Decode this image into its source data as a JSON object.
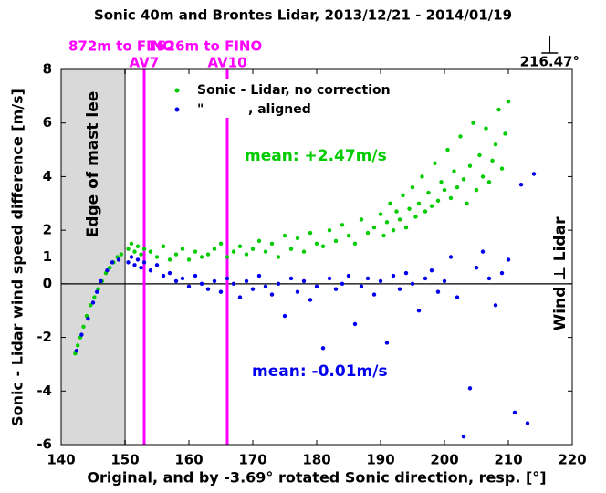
{
  "chart_data": {
    "type": "scatter",
    "title": "Sonic 40m and Brontes Lidar, 2013/12/21 - 2014/01/19",
    "xlabel": "Original, and by -3.69° rotated Sonic direction, resp. [°]",
    "ylabel": "Sonic - Lidar wind speed difference [m/s]",
    "xlim": [
      140,
      220
    ],
    "ylim": [
      -6,
      8
    ],
    "xticks": [
      140,
      150,
      160,
      170,
      180,
      190,
      200,
      210,
      220
    ],
    "yticks": [
      -6,
      -4,
      -2,
      0,
      1,
      2,
      4,
      6,
      8
    ],
    "hline": 0,
    "shaded_span": {
      "x": [
        140,
        150
      ],
      "label": "Edge of mast lee"
    },
    "vlines": [
      {
        "x": 153,
        "color": "#ff00ff",
        "labels": [
          "872m to FINO",
          "AV7"
        ]
      },
      {
        "x": 166,
        "color": "#ff00ff",
        "labels": [
          "1626m to FINO",
          "AV10"
        ]
      }
    ],
    "direction_marker": {
      "value": 216.47,
      "label": "216.47°"
    },
    "side_label": "Wind ⊥ Lidar",
    "annotations": [
      "mean: +2.47m/s",
      "mean: -0.01m/s"
    ],
    "series": [
      {
        "name": "Sonic - Lidar, no correction",
        "color": "#00cc00",
        "x": [
          142.2,
          142.6,
          143,
          143.5,
          144,
          144.6,
          145.2,
          145.8,
          146.4,
          147,
          147.6,
          148.2,
          148.8,
          149.4,
          150.5,
          151,
          151.5,
          152,
          152.5,
          153,
          154,
          155,
          156,
          157,
          158,
          159,
          160,
          161,
          162,
          163,
          164,
          165,
          166,
          167,
          168,
          169,
          170,
          171,
          172,
          173,
          174,
          175,
          176,
          177,
          178,
          179,
          180,
          181,
          182,
          183,
          184,
          185,
          186,
          187,
          188,
          189,
          190,
          190.5,
          191,
          191.5,
          192,
          192.5,
          193,
          193.5,
          194,
          194.5,
          195,
          195.5,
          196,
          196.5,
          197,
          197.5,
          198,
          198.5,
          199,
          199.5,
          200,
          200.5,
          201,
          201.5,
          202,
          202.5,
          203,
          203.5,
          204,
          204.5,
          205,
          205.5,
          206,
          206.5,
          207,
          207.5,
          208,
          208.5,
          209,
          209.5,
          210
        ],
        "values": [
          -2.6,
          -2.3,
          -2.0,
          -1.6,
          -1.2,
          -0.8,
          -0.5,
          -0.2,
          0.1,
          0.4,
          0.6,
          0.8,
          1.0,
          1.1,
          1.3,
          1.5,
          1.2,
          1.4,
          1.1,
          1.3,
          1.2,
          1.0,
          1.4,
          0.9,
          1.1,
          1.3,
          0.9,
          1.2,
          1.0,
          1.1,
          1.3,
          1.5,
          1.0,
          1.2,
          1.4,
          1.1,
          1.3,
          1.6,
          1.2,
          1.5,
          1.0,
          1.8,
          1.3,
          1.7,
          1.2,
          1.9,
          1.5,
          1.4,
          2.0,
          1.6,
          2.2,
          1.8,
          1.5,
          2.4,
          1.9,
          2.1,
          2.6,
          1.8,
          2.3,
          3.0,
          2.0,
          2.7,
          2.4,
          3.3,
          2.1,
          2.8,
          3.6,
          2.5,
          3.0,
          4.0,
          2.7,
          3.4,
          2.9,
          4.5,
          3.1,
          3.8,
          3.5,
          5.0,
          3.2,
          4.2,
          3.6,
          5.5,
          3.9,
          3.0,
          4.4,
          6.0,
          3.5,
          4.8,
          4.0,
          5.8,
          3.8,
          4.6,
          5.2,
          6.5,
          4.3,
          5.6,
          6.8
        ]
      },
      {
        "name": "\"          , aligned",
        "color": "#0000ee",
        "x": [
          142.4,
          143.2,
          144.2,
          145,
          145.6,
          146.2,
          147.2,
          148,
          149,
          150.5,
          151,
          151.5,
          152,
          152.5,
          153,
          154,
          155,
          156,
          157,
          158,
          159,
          160,
          161,
          162,
          163,
          164,
          165,
          166,
          167,
          168,
          169,
          170,
          171,
          172,
          173,
          174,
          175,
          176,
          177,
          178,
          179,
          180,
          181,
          182,
          183,
          184,
          185,
          186,
          187,
          188,
          189,
          190,
          191,
          192,
          193,
          194,
          195,
          196,
          197,
          198,
          199,
          200,
          201,
          202,
          203,
          204,
          205,
          206,
          207,
          208,
          209,
          210,
          211,
          212,
          213,
          214
        ],
        "values": [
          -2.5,
          -1.9,
          -1.3,
          -0.7,
          -0.3,
          0.1,
          0.5,
          0.8,
          0.9,
          0.8,
          1.0,
          0.7,
          0.9,
          0.6,
          0.8,
          0.5,
          0.7,
          0.3,
          0.4,
          0.1,
          0.2,
          -0.1,
          0.3,
          0.0,
          -0.2,
          0.1,
          -0.3,
          0.2,
          0.0,
          -0.5,
          0.1,
          -0.2,
          0.3,
          -0.1,
          -0.4,
          0.0,
          -1.2,
          0.2,
          -0.3,
          0.1,
          -0.6,
          -0.1,
          -2.4,
          0.2,
          -0.2,
          0.0,
          0.3,
          -1.5,
          -0.1,
          0.2,
          -0.4,
          0.1,
          -2.2,
          0.3,
          -0.2,
          0.4,
          0.0,
          -1.0,
          0.2,
          0.5,
          -0.3,
          0.1,
          1.0,
          -0.5,
          -5.7,
          -3.9,
          0.6,
          1.2,
          0.2,
          -0.8,
          0.4,
          0.9,
          -4.8,
          3.7,
          -5.2,
          4.1
        ]
      }
    ]
  }
}
